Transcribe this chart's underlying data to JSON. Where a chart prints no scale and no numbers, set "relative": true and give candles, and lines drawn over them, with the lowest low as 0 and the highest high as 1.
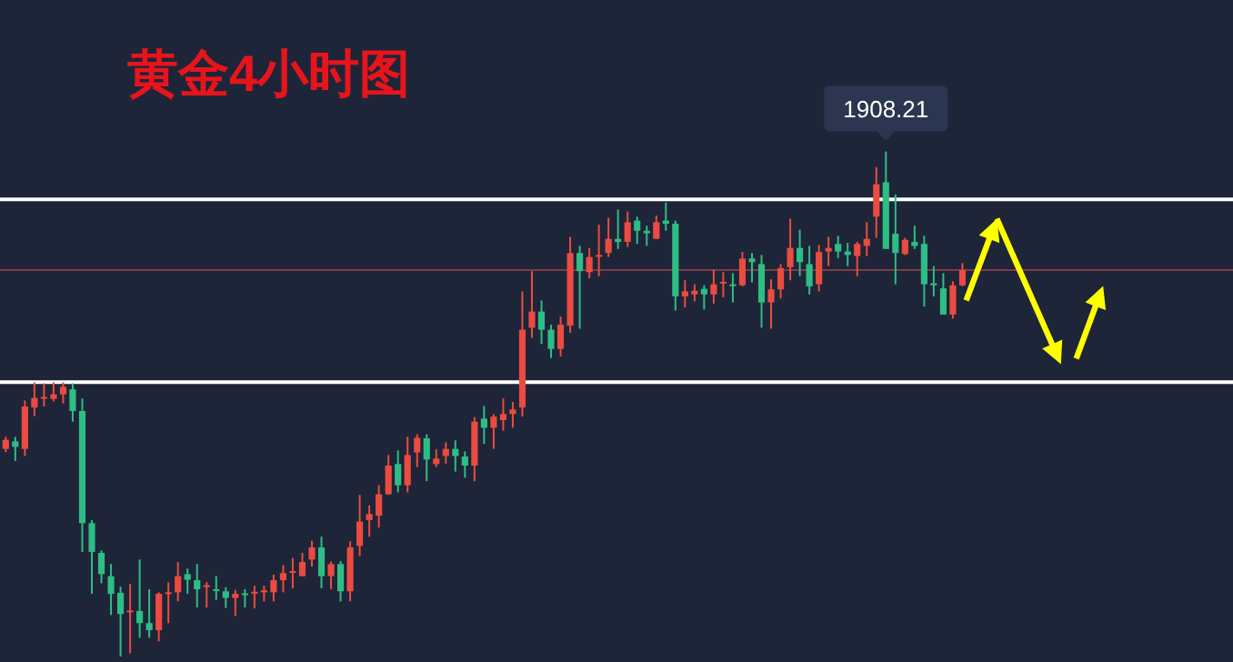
{
  "chart_data": {
    "type": "candlestick",
    "title": "黄金4小时图",
    "relative": true,
    "categories": [
      null,
      null,
      null,
      null,
      null,
      null,
      null,
      null,
      null,
      null,
      null,
      null,
      null,
      null,
      null,
      null,
      null,
      null,
      null,
      null,
      null,
      null,
      null,
      null,
      null,
      null,
      null,
      null,
      null,
      null,
      null,
      null,
      null,
      null,
      null,
      null,
      null,
      null,
      null,
      null,
      null,
      null,
      null,
      null,
      null,
      null,
      null,
      null,
      null,
      null,
      null,
      null,
      null,
      null,
      null,
      null,
      null,
      null,
      null,
      null,
      null,
      null,
      null,
      null,
      null,
      null,
      null,
      null,
      null,
      null,
      null,
      null,
      null,
      null,
      null,
      null,
      null,
      null,
      null,
      null,
      null,
      null,
      null,
      null,
      null,
      null,
      null,
      null,
      null,
      null,
      null,
      null,
      null,
      null,
      null,
      null,
      null,
      null,
      null,
      null,
      null
    ],
    "ohlc": [
      [
        0.411,
        0.435,
        0.405,
        0.429
      ],
      [
        0.426,
        0.435,
        0.387,
        0.415
      ],
      [
        0.411,
        0.507,
        0.397,
        0.495
      ],
      [
        0.493,
        0.543,
        0.476,
        0.512
      ],
      [
        0.512,
        0.541,
        0.495,
        0.514
      ],
      [
        0.51,
        0.543,
        0.505,
        0.519
      ],
      [
        0.519,
        0.543,
        0.501,
        0.534
      ],
      [
        0.529,
        0.541,
        0.465,
        0.486
      ],
      [
        0.486,
        0.511,
        0.207,
        0.264
      ],
      [
        0.264,
        0.27,
        0.124,
        0.207
      ],
      [
        0.205,
        0.21,
        0.145,
        0.163
      ],
      [
        0.159,
        0.183,
        0.082,
        0.124
      ],
      [
        0.126,
        0.138,
        0,
        0.084
      ],
      [
        0.088,
        0.144,
        0.006,
        0.091
      ],
      [
        0.09,
        0.192,
        0.037,
        0.066
      ],
      [
        0.066,
        0.133,
        0.037,
        0.052
      ],
      [
        0.052,
        0.127,
        0.03,
        0.124
      ],
      [
        0.124,
        0.147,
        0.066,
        0.127
      ],
      [
        0.127,
        0.187,
        0.109,
        0.159
      ],
      [
        0.163,
        0.174,
        0.124,
        0.152
      ],
      [
        0.151,
        0.183,
        0.097,
        0.133
      ],
      [
        0.139,
        0.147,
        0.097,
        0.141
      ],
      [
        0.133,
        0.159,
        0.112,
        0.131
      ],
      [
        0.129,
        0.137,
        0.096,
        0.116
      ],
      [
        0.116,
        0.132,
        0.08,
        0.124
      ],
      [
        0.125,
        0.133,
        0.097,
        0.122
      ],
      [
        0.125,
        0.14,
        0.095,
        0.128
      ],
      [
        0.127,
        0.14,
        0.109,
        0.131
      ],
      [
        0.127,
        0.162,
        0.109,
        0.151
      ],
      [
        0.151,
        0.181,
        0.127,
        0.165
      ],
      [
        0.167,
        0.195,
        0.135,
        0.169
      ],
      [
        0.159,
        0.205,
        0.159,
        0.187
      ],
      [
        0.192,
        0.229,
        0.178,
        0.216
      ],
      [
        0.216,
        0.237,
        0.135,
        0.159
      ],
      [
        0.159,
        0.188,
        0.133,
        0.183
      ],
      [
        0.183,
        0.189,
        0.109,
        0.129
      ],
      [
        0.129,
        0.228,
        0.109,
        0.216
      ],
      [
        0.219,
        0.32,
        0.199,
        0.267
      ],
      [
        0.27,
        0.299,
        0.237,
        0.282
      ],
      [
        0.279,
        0.339,
        0.255,
        0.321
      ],
      [
        0.321,
        0.399,
        0.32,
        0.378
      ],
      [
        0.381,
        0.408,
        0.325,
        0.339
      ],
      [
        0.339,
        0.435,
        0.325,
        0.399
      ],
      [
        0.404,
        0.44,
        0.375,
        0.433
      ],
      [
        0.432,
        0.44,
        0.347,
        0.39
      ],
      [
        0.381,
        0.41,
        0.375,
        0.392
      ],
      [
        0.397,
        0.424,
        0.382,
        0.411
      ],
      [
        0.411,
        0.428,
        0.366,
        0.397
      ],
      [
        0.396,
        0.406,
        0.354,
        0.378
      ],
      [
        0.378,
        0.474,
        0.347,
        0.465
      ],
      [
        0.471,
        0.496,
        0.421,
        0.453
      ],
      [
        0.453,
        0.48,
        0.411,
        0.475
      ],
      [
        0.468,
        0.511,
        0.447,
        0.48
      ],
      [
        0.48,
        0.504,
        0.453,
        0.489
      ],
      [
        0.493,
        0.723,
        0.475,
        0.647
      ],
      [
        0.651,
        0.763,
        0.631,
        0.683
      ],
      [
        0.683,
        0.705,
        0.619,
        0.647
      ],
      [
        0.647,
        0.657,
        0.591,
        0.609
      ],
      [
        0.609,
        0.673,
        0.594,
        0.657
      ],
      [
        0.655,
        0.831,
        0.641,
        0.799
      ],
      [
        0.799,
        0.813,
        0.649,
        0.763
      ],
      [
        0.761,
        0.809,
        0.749,
        0.791
      ],
      [
        0.793,
        0.855,
        0.753,
        0.795
      ],
      [
        0.799,
        0.869,
        0.791,
        0.827
      ],
      [
        0.827,
        0.885,
        0.807,
        0.821
      ],
      [
        0.821,
        0.881,
        0.811,
        0.86
      ],
      [
        0.863,
        0.871,
        0.817,
        0.843
      ],
      [
        0.843,
        0.853,
        0.813,
        0.838
      ],
      [
        0.827,
        0.873,
        0.827,
        0.86
      ],
      [
        0.863,
        0.899,
        0.843,
        0.857
      ],
      [
        0.857,
        0.863,
        0.685,
        0.713
      ],
      [
        0.713,
        0.745,
        0.691,
        0.723
      ],
      [
        0.717,
        0.737,
        0.703,
        0.724
      ],
      [
        0.728,
        0.735,
        0.687,
        0.717
      ],
      [
        0.717,
        0.766,
        0.699,
        0.737
      ],
      [
        0.739,
        0.761,
        0.711,
        0.742
      ],
      [
        0.737,
        0.759,
        0.701,
        0.735
      ],
      [
        0.735,
        0.801,
        0.733,
        0.788
      ],
      [
        0.788,
        0.799,
        0.741,
        0.781
      ],
      [
        0.777,
        0.795,
        0.651,
        0.701
      ],
      [
        0.701,
        0.747,
        0.649,
        0.727
      ],
      [
        0.727,
        0.777,
        0.709,
        0.769
      ],
      [
        0.771,
        0.867,
        0.745,
        0.809
      ],
      [
        0.809,
        0.845,
        0.753,
        0.781
      ],
      [
        0.777,
        0.813,
        0.717,
        0.733
      ],
      [
        0.737,
        0.815,
        0.723,
        0.801
      ],
      [
        0.802,
        0.831,
        0.773,
        0.809
      ],
      [
        0.817,
        0.833,
        0.789,
        0.802
      ],
      [
        0.802,
        0.819,
        0.773,
        0.795
      ],
      [
        0.793,
        0.821,
        0.753,
        0.817
      ],
      [
        0.813,
        0.86,
        0.793,
        0.827
      ],
      [
        0.871,
        0.969,
        0.829,
        0.935
      ],
      [
        0.939,
        1,
        0.807,
        0.807
      ],
      [
        0.837,
        0.915,
        0.737,
        0.799
      ],
      [
        0.797,
        0.829,
        0.795,
        0.825
      ],
      [
        0.821,
        0.853,
        0.807,
        0.813
      ],
      [
        0.817,
        0.833,
        0.693,
        0.737
      ],
      [
        0.739,
        0.773,
        0.713,
        0.735
      ],
      [
        0.729,
        0.759,
        0.677,
        0.677
      ],
      [
        0.677,
        0.743,
        0.669,
        0.735
      ],
      [
        0.735,
        0.779,
        0.733,
        0.765
      ]
    ],
    "colors": [
      "#eb4b40",
      "#2ebd85",
      "#eb4b40",
      "#eb4b40",
      "#eb4b40",
      "#eb4b40",
      "#eb4b40",
      "#2ebd85",
      "#2ebd85",
      "#2ebd85",
      "#2ebd85",
      "#2ebd85",
      "#2ebd85",
      "#eb4b40",
      "#2ebd85",
      "#2ebd85",
      "#eb4b40",
      "#eb4b40",
      "#eb4b40",
      "#2ebd85",
      "#2ebd85",
      "#eb4b40",
      "#2ebd85",
      "#2ebd85",
      "#eb4b40",
      "#2ebd85",
      "#eb4b40",
      "#eb4b40",
      "#eb4b40",
      "#eb4b40",
      "#eb4b40",
      "#eb4b40",
      "#eb4b40",
      "#2ebd85",
      "#eb4b40",
      "#2ebd85",
      "#eb4b40",
      "#eb4b40",
      "#eb4b40",
      "#eb4b40",
      "#eb4b40",
      "#2ebd85",
      "#eb4b40",
      "#eb4b40",
      "#2ebd85",
      "#eb4b40",
      "#eb4b40",
      "#2ebd85",
      "#2ebd85",
      "#eb4b40",
      "#2ebd85",
      "#eb4b40",
      "#eb4b40",
      "#eb4b40",
      "#eb4b40",
      "#eb4b40",
      "#2ebd85",
      "#2ebd85",
      "#eb4b40",
      "#eb4b40",
      "#2ebd85",
      "#eb4b40",
      "#eb4b40",
      "#eb4b40",
      "#2ebd85",
      "#eb4b40",
      "#2ebd85",
      "#2ebd85",
      "#eb4b40",
      "#2ebd85",
      "#2ebd85",
      "#eb4b40",
      "#eb4b40",
      "#2ebd85",
      "#eb4b40",
      "#eb4b40",
      "#2ebd85",
      "#eb4b40",
      "#2ebd85",
      "#2ebd85",
      "#eb4b40",
      "#eb4b40",
      "#eb4b40",
      "#2ebd85",
      "#2ebd85",
      "#eb4b40",
      "#eb4b40",
      "#2ebd85",
      "#2ebd85",
      "#eb4b40",
      "#eb4b40",
      "#eb4b40",
      "#2ebd85",
      "#2ebd85",
      "#eb4b40",
      "#2ebd85",
      "#2ebd85",
      "#2ebd85",
      "#2ebd85",
      "#eb4b40",
      "#eb4b40"
    ],
    "annotations": [
      {
        "text": "1908.21",
        "y": 1
      }
    ],
    "ref_lines": [
      {
        "axis": "y",
        "value": 0.905,
        "color": "#ffffff"
      },
      {
        "axis": "y",
        "value": 0.543,
        "color": "#ffffff"
      },
      {
        "axis": "y",
        "value": 0.765,
        "color": "#7d3b48"
      }
    ]
  }
}
